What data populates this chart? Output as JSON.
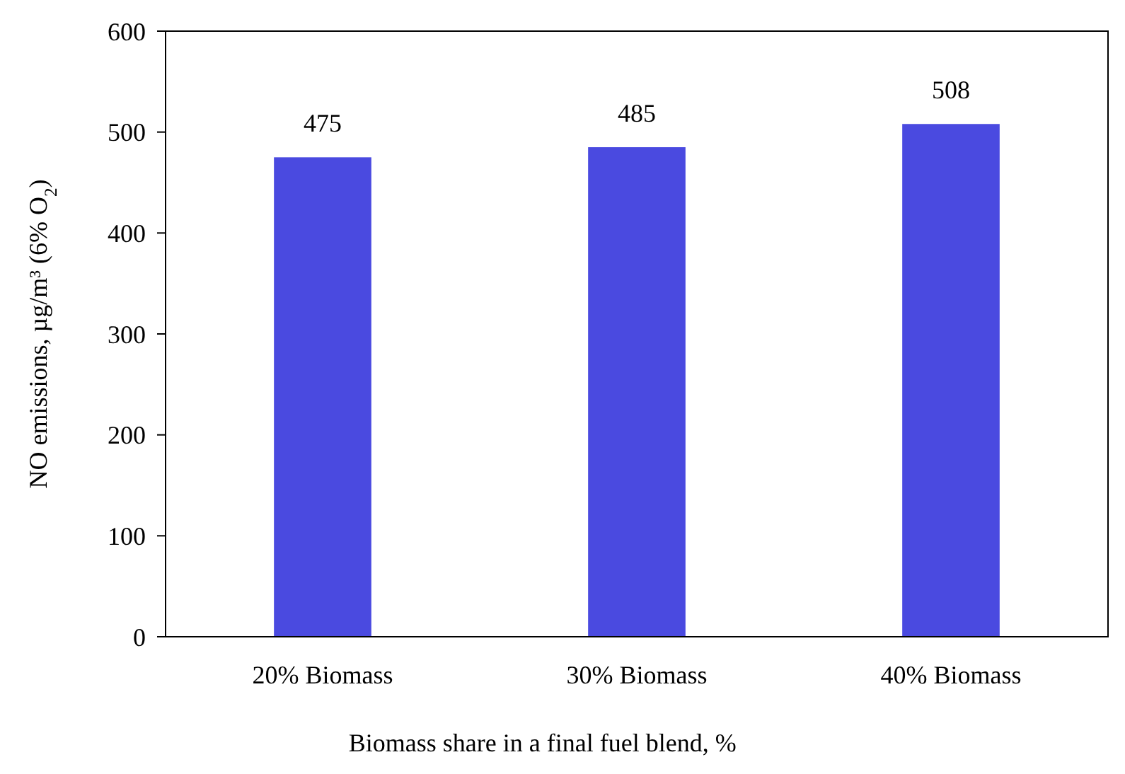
{
  "chart_data": {
    "type": "bar",
    "categories": [
      "20% Biomass",
      "30% Biomass",
      "40% Biomass"
    ],
    "values": [
      475,
      485,
      508
    ],
    "color": "#4a4ae0",
    "ylim": [
      0,
      600
    ],
    "yticks": [
      0,
      100,
      200,
      300,
      400,
      500,
      600
    ],
    "data_labels": true,
    "grid": false,
    "xlabel": "Biomass share in a final fuel blend, %",
    "ylabel": "NO emissions, µg/m³ (6% O$_{2}$)"
  }
}
